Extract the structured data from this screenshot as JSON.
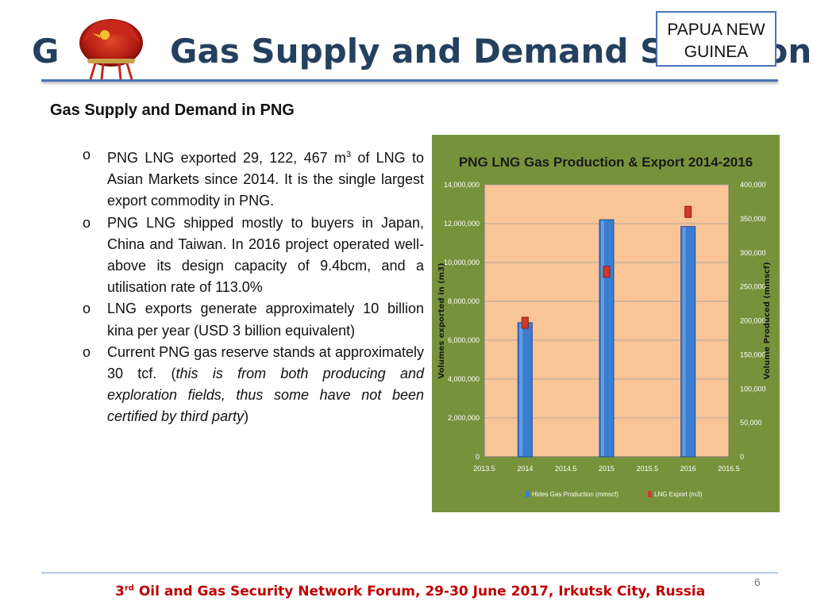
{
  "header": {
    "title": "Gas Supply and Demand Situation",
    "country_label": "PAPUA NEW GUINEA"
  },
  "main": {
    "subtitle": "Gas Supply and Demand in PNG",
    "bullet_marker": "o",
    "bullets": [
      {
        "pre": "PNG LNG exported 29, 122, 467 m",
        "sup": "3",
        "post": " of LNG to Asian Markets since 2014. It is the single largest export commodity in PNG."
      },
      {
        "text": "PNG LNG shipped mostly to buyers in Japan, China and Taiwan. In 2016 project operated well-above its design capacity of 9.4bcm, and a utilisation rate of 113.0%"
      },
      {
        "text": "LNG exports generate approximately 10 billion kina per year (USD 3 billion equivalent)"
      },
      {
        "pre": "Current PNG gas reserve stands at approximately 30 tcf. (",
        "italic": "this is from both producing and exploration fields, thus some have not been certified by third party",
        "post": ")"
      }
    ]
  },
  "chart_data": {
    "type": "bar",
    "title": "PNG LNG Gas Production & Export 2014-2016",
    "xlabel": "",
    "ylabel_left": "Volumes exported in (m3)",
    "ylabel_right": "Volume Produced (mmscf)",
    "x_ticks": [
      "2013.5",
      "2014",
      "2014.5",
      "2015",
      "2015.5",
      "2016",
      "2016.5"
    ],
    "xlim": [
      2013.5,
      2016.5
    ],
    "y_left_ticks": [
      "0",
      "2,000,000",
      "4,000,000",
      "6,000,000",
      "8,000,000",
      "10,000,000",
      "12,000,000",
      "14,000,000"
    ],
    "ylim_left": [
      0,
      14000000
    ],
    "y_right_ticks": [
      "0",
      "50,000",
      "100,000",
      "150,000",
      "200,000",
      "250,000",
      "300,000",
      "350,000",
      "400,000"
    ],
    "ylim_right": [
      0,
      400000
    ],
    "grid": true,
    "legend_position": "bottom",
    "series": [
      {
        "name": "Hides Gas Production (mmscf)",
        "axis": "left",
        "marker": "bar",
        "x": [
          2014,
          2015,
          2016
        ],
        "values": [
          6900000,
          12200000,
          11850000
        ]
      },
      {
        "name": "LNG Export (m3)",
        "axis": "right",
        "marker": "square",
        "x": [
          2014,
          2015,
          2016
        ],
        "values": [
          197000,
          272000,
          360000
        ]
      }
    ],
    "colors": {
      "background": "#76933c",
      "plot_area": "#f9c597",
      "bar": "#3b7ed0",
      "bar_dark": "#1d4f96",
      "marker": "#d03a2c",
      "tick_text": "#ffffff",
      "gridline": "#9a9a9a"
    }
  },
  "footer": {
    "event_ordinal": "3",
    "event_ordinal_suffix": "rd",
    "event_text": " Oil and Gas Security Network Forum, 29-30 June 2017, Irkutsk City, Russia",
    "page_number": "6"
  }
}
